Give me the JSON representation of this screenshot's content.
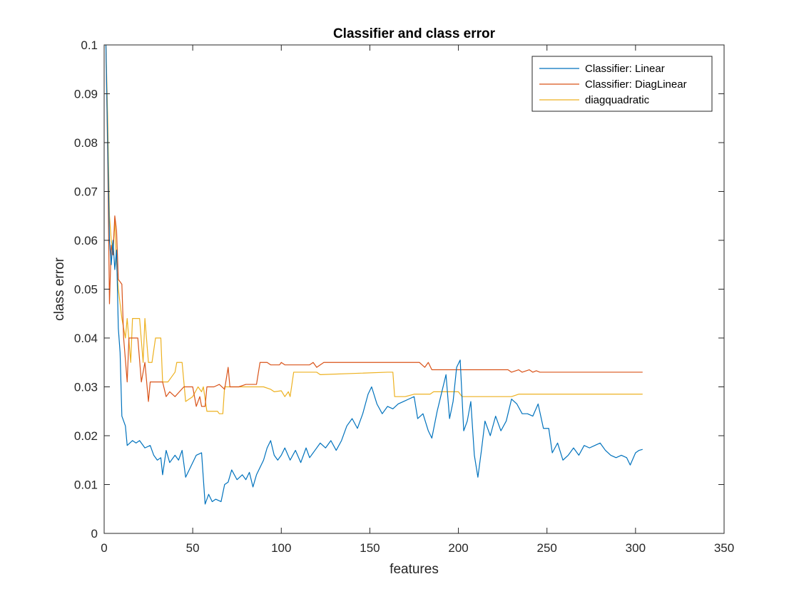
{
  "chart_data": {
    "type": "line",
    "title": "Classifier and class error",
    "xlabel": "features",
    "ylabel": "class error",
    "xlim": [
      0,
      350
    ],
    "ylim": [
      0,
      0.1
    ],
    "x_ticks": [
      0,
      50,
      100,
      150,
      200,
      250,
      300,
      350
    ],
    "y_ticks": [
      0,
      0.01,
      0.02,
      0.03,
      0.04,
      0.05,
      0.06,
      0.07,
      0.08,
      0.09,
      0.1
    ],
    "x_tick_labels": [
      "0",
      "50",
      "100",
      "150",
      "200",
      "250",
      "300",
      "350"
    ],
    "y_tick_labels": [
      "0",
      "0.01",
      "0.02",
      "0.03",
      "0.04",
      "0.05",
      "0.06",
      "0.07",
      "0.08",
      "0.09",
      "0.1"
    ],
    "grid": false,
    "legend_position": "top-right",
    "series": [
      {
        "name": "Classifier: Linear",
        "color": "#0072BD",
        "points": [
          [
            1,
            0.1
          ],
          [
            2,
            0.08
          ],
          [
            3,
            0.06
          ],
          [
            4,
            0.055
          ],
          [
            5,
            0.06
          ],
          [
            6,
            0.054
          ],
          [
            7,
            0.058
          ],
          [
            8,
            0.042
          ],
          [
            9,
            0.037
          ],
          [
            10,
            0.024
          ],
          [
            12,
            0.022
          ],
          [
            13,
            0.018
          ],
          [
            16,
            0.019
          ],
          [
            18,
            0.0185
          ],
          [
            20,
            0.019
          ],
          [
            23,
            0.0175
          ],
          [
            26,
            0.018
          ],
          [
            28,
            0.016
          ],
          [
            30,
            0.015
          ],
          [
            32,
            0.0155
          ],
          [
            33,
            0.012
          ],
          [
            35,
            0.017
          ],
          [
            37,
            0.0145
          ],
          [
            40,
            0.016
          ],
          [
            42,
            0.015
          ],
          [
            44,
            0.017
          ],
          [
            46,
            0.0115
          ],
          [
            48,
            0.013
          ],
          [
            52,
            0.016
          ],
          [
            55,
            0.0165
          ],
          [
            57,
            0.006
          ],
          [
            59,
            0.008
          ],
          [
            61,
            0.0065
          ],
          [
            63,
            0.007
          ],
          [
            66,
            0.0065
          ],
          [
            68,
            0.01
          ],
          [
            70,
            0.0105
          ],
          [
            72,
            0.013
          ],
          [
            75,
            0.011
          ],
          [
            78,
            0.012
          ],
          [
            80,
            0.011
          ],
          [
            82,
            0.0125
          ],
          [
            84,
            0.0095
          ],
          [
            86,
            0.012
          ],
          [
            88,
            0.0135
          ],
          [
            90,
            0.015
          ],
          [
            92,
            0.0175
          ],
          [
            94,
            0.019
          ],
          [
            96,
            0.016
          ],
          [
            98,
            0.015
          ],
          [
            100,
            0.016
          ],
          [
            102,
            0.0175
          ],
          [
            105,
            0.015
          ],
          [
            108,
            0.017
          ],
          [
            111,
            0.0145
          ],
          [
            114,
            0.0175
          ],
          [
            116,
            0.0155
          ],
          [
            119,
            0.017
          ],
          [
            122,
            0.0185
          ],
          [
            125,
            0.0175
          ],
          [
            128,
            0.019
          ],
          [
            131,
            0.017
          ],
          [
            134,
            0.019
          ],
          [
            137,
            0.022
          ],
          [
            140,
            0.0235
          ],
          [
            143,
            0.0215
          ],
          [
            146,
            0.0245
          ],
          [
            149,
            0.0285
          ],
          [
            151,
            0.03
          ],
          [
            154,
            0.0265
          ],
          [
            157,
            0.0245
          ],
          [
            160,
            0.026
          ],
          [
            163,
            0.0255
          ],
          [
            166,
            0.0265
          ],
          [
            169,
            0.027
          ],
          [
            172,
            0.0275
          ],
          [
            175,
            0.028
          ],
          [
            177,
            0.0235
          ],
          [
            180,
            0.0245
          ],
          [
            183,
            0.021
          ],
          [
            185,
            0.0195
          ],
          [
            188,
            0.025
          ],
          [
            190,
            0.028
          ],
          [
            193,
            0.0325
          ],
          [
            195,
            0.0235
          ],
          [
            197,
            0.027
          ],
          [
            199,
            0.034
          ],
          [
            201,
            0.0355
          ],
          [
            203,
            0.021
          ],
          [
            205,
            0.023
          ],
          [
            207,
            0.027
          ],
          [
            209,
            0.016
          ],
          [
            211,
            0.0115
          ],
          [
            213,
            0.017
          ],
          [
            215,
            0.023
          ],
          [
            218,
            0.02
          ],
          [
            221,
            0.024
          ],
          [
            224,
            0.021
          ],
          [
            227,
            0.023
          ],
          [
            230,
            0.0275
          ],
          [
            233,
            0.0265
          ],
          [
            236,
            0.0245
          ],
          [
            239,
            0.0245
          ],
          [
            242,
            0.024
          ],
          [
            245,
            0.0265
          ],
          [
            248,
            0.0215
          ],
          [
            251,
            0.0215
          ],
          [
            253,
            0.0165
          ],
          [
            256,
            0.0185
          ],
          [
            259,
            0.015
          ],
          [
            262,
            0.016
          ],
          [
            265,
            0.0175
          ],
          [
            268,
            0.016
          ],
          [
            271,
            0.018
          ],
          [
            274,
            0.0175
          ],
          [
            277,
            0.018
          ],
          [
            280,
            0.0185
          ],
          [
            283,
            0.017
          ],
          [
            286,
            0.016
          ],
          [
            289,
            0.0155
          ],
          [
            292,
            0.016
          ],
          [
            295,
            0.0155
          ],
          [
            297,
            0.014
          ],
          [
            300,
            0.0165
          ],
          [
            302,
            0.017
          ],
          [
            304,
            0.0172
          ]
        ]
      },
      {
        "name": "Classifier: DiagLinear",
        "color": "#D95319",
        "points": [
          [
            1,
            0.1
          ],
          [
            2,
            0.077
          ],
          [
            3,
            0.047
          ],
          [
            4,
            0.059
          ],
          [
            5,
            0.057
          ],
          [
            6,
            0.065
          ],
          [
            7,
            0.062
          ],
          [
            8,
            0.052
          ],
          [
            10,
            0.051
          ],
          [
            11,
            0.04
          ],
          [
            13,
            0.031
          ],
          [
            14,
            0.04
          ],
          [
            19,
            0.04
          ],
          [
            21,
            0.031
          ],
          [
            23,
            0.035
          ],
          [
            25,
            0.027
          ],
          [
            26,
            0.031
          ],
          [
            33,
            0.031
          ],
          [
            35,
            0.028
          ],
          [
            37,
            0.029
          ],
          [
            40,
            0.028
          ],
          [
            45,
            0.03
          ],
          [
            50,
            0.03
          ],
          [
            52,
            0.026
          ],
          [
            54,
            0.028
          ],
          [
            55,
            0.026
          ],
          [
            57,
            0.026
          ],
          [
            58,
            0.03
          ],
          [
            62,
            0.03
          ],
          [
            65,
            0.0305
          ],
          [
            68,
            0.0295
          ],
          [
            70,
            0.034
          ],
          [
            71,
            0.03
          ],
          [
            76,
            0.03
          ],
          [
            80,
            0.0305
          ],
          [
            86,
            0.0305
          ],
          [
            88,
            0.035
          ],
          [
            92,
            0.035
          ],
          [
            94,
            0.0345
          ],
          [
            99,
            0.0345
          ],
          [
            100,
            0.035
          ],
          [
            102,
            0.0345
          ],
          [
            116,
            0.0345
          ],
          [
            118,
            0.035
          ],
          [
            120,
            0.034
          ],
          [
            124,
            0.035
          ],
          [
            178,
            0.035
          ],
          [
            181,
            0.034
          ],
          [
            183,
            0.035
          ],
          [
            185,
            0.0335
          ],
          [
            228,
            0.0335
          ],
          [
            230,
            0.033
          ],
          [
            234,
            0.0335
          ],
          [
            236,
            0.033
          ],
          [
            240,
            0.0335
          ],
          [
            242,
            0.033
          ],
          [
            244,
            0.0333
          ],
          [
            246,
            0.033
          ],
          [
            304,
            0.033
          ]
        ]
      },
      {
        "name": "diagquadratic",
        "color": "#EDB120",
        "points": [
          [
            1,
            0.1
          ],
          [
            2,
            0.085
          ],
          [
            3,
            0.065
          ],
          [
            4,
            0.06
          ],
          [
            5,
            0.058
          ],
          [
            6,
            0.064
          ],
          [
            7,
            0.055
          ],
          [
            8,
            0.05
          ],
          [
            10,
            0.044
          ],
          [
            12,
            0.04
          ],
          [
            13,
            0.044
          ],
          [
            15,
            0.035
          ],
          [
            16,
            0.044
          ],
          [
            20,
            0.044
          ],
          [
            22,
            0.035
          ],
          [
            23,
            0.044
          ],
          [
            25,
            0.035
          ],
          [
            27,
            0.035
          ],
          [
            29,
            0.04
          ],
          [
            32,
            0.04
          ],
          [
            33,
            0.031
          ],
          [
            36,
            0.031
          ],
          [
            38,
            0.032
          ],
          [
            40,
            0.033
          ],
          [
            41,
            0.035
          ],
          [
            44,
            0.035
          ],
          [
            46,
            0.027
          ],
          [
            50,
            0.028
          ],
          [
            53,
            0.03
          ],
          [
            55,
            0.029
          ],
          [
            56,
            0.03
          ],
          [
            58,
            0.025
          ],
          [
            64,
            0.025
          ],
          [
            65,
            0.0245
          ],
          [
            67,
            0.0245
          ],
          [
            68,
            0.03
          ],
          [
            90,
            0.03
          ],
          [
            94,
            0.0295
          ],
          [
            96,
            0.029
          ],
          [
            100,
            0.0292
          ],
          [
            102,
            0.028
          ],
          [
            104,
            0.029
          ],
          [
            105,
            0.028
          ],
          [
            107,
            0.033
          ],
          [
            120,
            0.033
          ],
          [
            122,
            0.0325
          ],
          [
            160,
            0.033
          ],
          [
            163,
            0.033
          ],
          [
            164,
            0.028
          ],
          [
            170,
            0.028
          ],
          [
            175,
            0.0285
          ],
          [
            184,
            0.0285
          ],
          [
            186,
            0.029
          ],
          [
            200,
            0.029
          ],
          [
            202,
            0.028
          ],
          [
            230,
            0.028
          ],
          [
            234,
            0.0285
          ],
          [
            304,
            0.0285
          ]
        ]
      }
    ]
  }
}
